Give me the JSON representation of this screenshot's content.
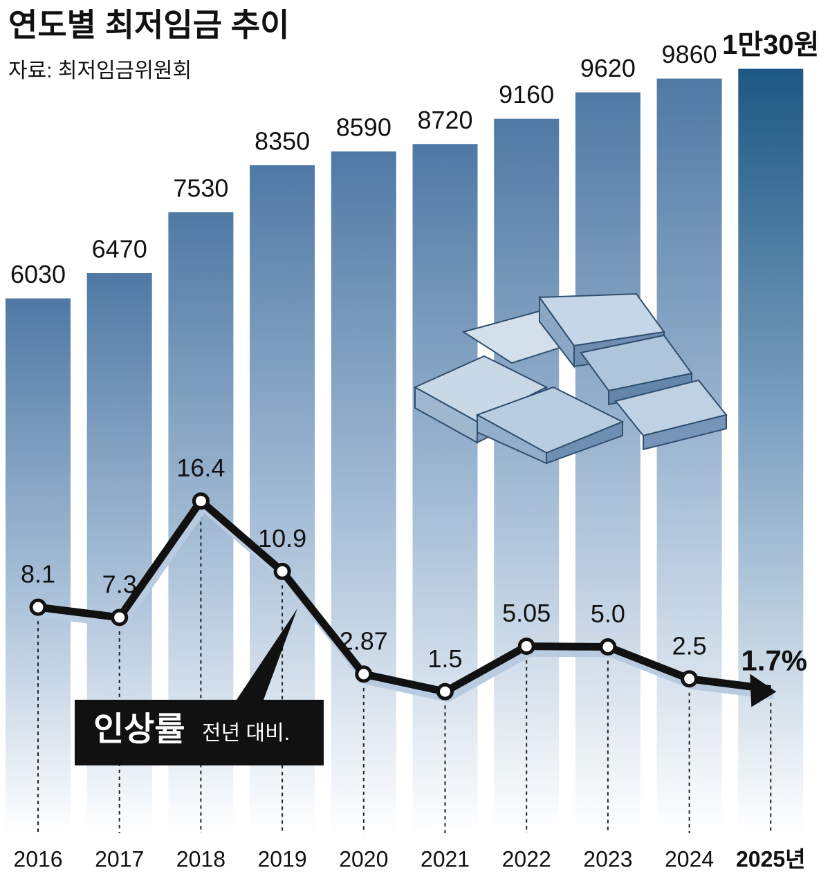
{
  "chart_data": {
    "type": "bar",
    "title": "연도별 최저임금 추이",
    "subtitle": "자료: 최저임금위원회",
    "categories": [
      "2016",
      "2017",
      "2018",
      "2019",
      "2020",
      "2021",
      "2022",
      "2023",
      "2024",
      "2025년"
    ],
    "series": [
      {
        "type": "bar",
        "color": "#3d6a96",
        "values": [
          6030,
          6470,
          7530,
          8350,
          8590,
          8720,
          9160,
          9620,
          9860,
          10030
        ],
        "value_labels": [
          "6030",
          "6470",
          "7530",
          "8350",
          "8590",
          "8720",
          "9160",
          "9620",
          "9860",
          "1만30원"
        ]
      },
      {
        "type": "line",
        "color": "#111111",
        "values": [
          8.1,
          7.3,
          16.4,
          10.9,
          2.87,
          1.5,
          5.05,
          5.0,
          2.5,
          1.7
        ],
        "value_labels": [
          "8.1",
          "7.3",
          "16.4",
          "10.9",
          "2.87",
          "1.5",
          "5.05",
          "5.0",
          "2.5",
          "1.7%"
        ]
      }
    ],
    "annotation": {
      "label": "인상률",
      "note": "전년 대비."
    }
  }
}
